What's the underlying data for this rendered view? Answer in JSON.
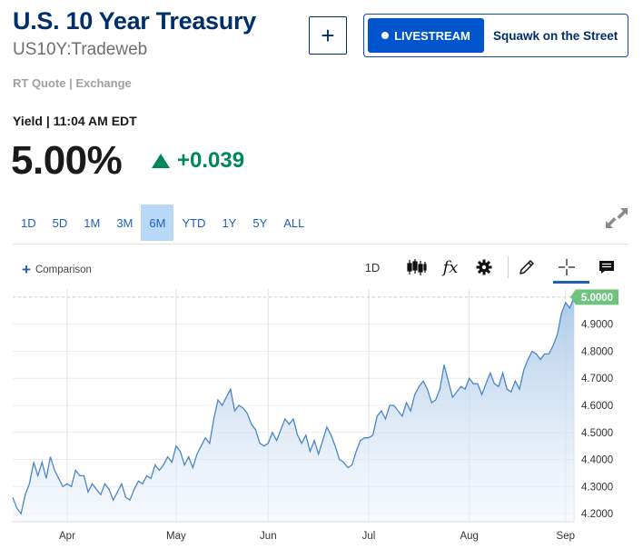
{
  "header": {
    "title": "U.S. 10 Year Treasury",
    "symbol": "US10Y:Tradeweb",
    "quote_source": "RT Quote | Exchange"
  },
  "actions": {
    "add_label": "+",
    "livestream_label": "LIVESTREAM",
    "show_name": "Squawk on the Street"
  },
  "quote": {
    "yield_time": "Yield | 11:04 AM EDT",
    "price": "5.00%",
    "change": "+0.039"
  },
  "ranges": [
    "1D",
    "5D",
    "1M",
    "3M",
    "6M",
    "YTD",
    "1Y",
    "5Y",
    "ALL"
  ],
  "active_range": "6M",
  "toolbar": {
    "comparison_label": "Comparison",
    "interval_label": "1D",
    "fx_label": "fx"
  },
  "colors": {
    "accent": "#1f5fb8",
    "title": "#002f6c",
    "positive": "#00875a",
    "line": "#4a86c5",
    "last_price_tag": "#6fc37f"
  },
  "chart_data": {
    "type": "area",
    "series": [
      {
        "values": [
          4.26,
          4.22,
          4.2,
          4.27,
          4.31,
          4.39,
          4.34,
          4.39,
          4.33,
          4.41,
          4.36,
          4.33,
          4.3,
          4.31,
          4.3,
          4.36,
          4.34,
          4.34,
          4.28,
          4.31,
          4.29,
          4.27,
          4.31,
          4.29,
          4.25,
          4.28,
          4.31,
          4.26,
          4.25,
          4.29,
          4.32,
          4.31,
          4.34,
          4.33,
          4.38,
          4.36,
          4.38,
          4.41,
          4.39,
          4.45,
          4.43,
          4.38,
          4.41,
          4.37,
          4.42,
          4.45,
          4.48,
          4.46,
          4.55,
          4.62,
          4.6,
          4.63,
          4.66,
          4.58,
          4.6,
          4.59,
          4.57,
          4.53,
          4.51,
          4.46,
          4.45,
          4.46,
          4.5,
          4.47,
          4.51,
          4.55,
          4.53,
          4.55,
          4.49,
          4.46,
          4.49,
          4.43,
          4.47,
          4.42,
          4.47,
          4.52,
          4.49,
          4.45,
          4.4,
          4.39,
          4.37,
          4.38,
          4.43,
          4.47,
          4.48,
          4.48,
          4.49,
          4.56,
          4.58,
          4.55,
          4.6,
          4.6,
          4.58,
          4.56,
          4.61,
          4.58,
          4.64,
          4.67,
          4.69,
          4.66,
          4.61,
          4.62,
          4.66,
          4.75,
          4.69,
          4.63,
          4.65,
          4.67,
          4.66,
          4.7,
          4.68,
          4.68,
          4.64,
          4.68,
          4.72,
          4.68,
          4.67,
          4.72,
          4.66,
          4.65,
          4.69,
          4.66,
          4.73,
          4.77,
          4.8,
          4.79,
          4.77,
          4.79,
          4.79,
          4.82,
          4.86,
          4.94,
          4.98,
          4.96,
          5.0
        ]
      }
    ],
    "x_tick_labels": [
      "Apr",
      "May",
      "Jun",
      "Jul",
      "Aug",
      "Sep"
    ],
    "y_tick_labels": [
      "4.2000",
      "4.3000",
      "4.4000",
      "4.5000",
      "4.6000",
      "4.7000",
      "4.8000",
      "4.9000"
    ],
    "ylim": [
      4.17,
      5.03
    ],
    "last_value_label": "5.0000",
    "grid": true
  }
}
